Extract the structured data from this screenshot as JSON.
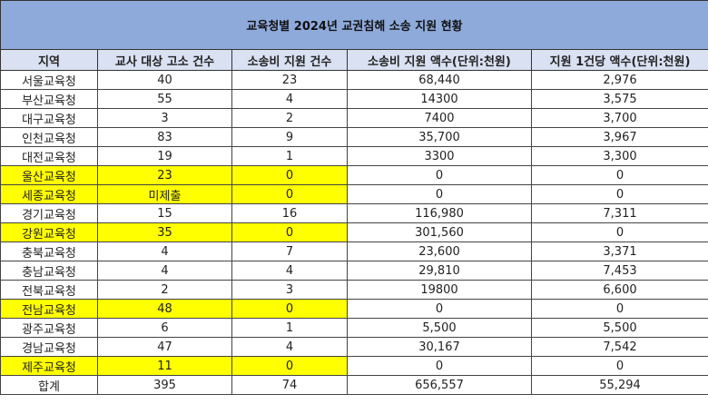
{
  "title": "교육청별 2024년 교권침해 소송 지원 현황",
  "headers": [
    "지역",
    "교사 대상 고소 건수",
    "소송비 지원 건수",
    "소송비 지원 액수(단위:천원)",
    "지원 1건당 액수(단위:천원)"
  ],
  "highlight_color": "#ffff00",
  "header_color": "#d9e1f2",
  "title_color": "#8eaadb",
  "rows": [
    {
      "region": "서울교육청",
      "complaints": "40",
      "support_count": "23",
      "support_amount": "68,440",
      "per_case": "2,976",
      "highlight": false
    },
    {
      "region": "부산교육청",
      "complaints": "55",
      "support_count": "4",
      "support_amount": "14300",
      "per_case": "3,575",
      "highlight": false
    },
    {
      "region": "대구교육청",
      "complaints": "3",
      "support_count": "2",
      "support_amount": "7400",
      "per_case": "3,700",
      "highlight": false
    },
    {
      "region": "인천교육청",
      "complaints": "83",
      "support_count": "9",
      "support_amount": "35,700",
      "per_case": "3,967",
      "highlight": false
    },
    {
      "region": "대전교육청",
      "complaints": "19",
      "support_count": "1",
      "support_amount": "3300",
      "per_case": "3,300",
      "highlight": false
    },
    {
      "region": "울산교육청",
      "complaints": "23",
      "support_count": "0",
      "support_amount": "0",
      "per_case": "0",
      "highlight": true
    },
    {
      "region": "세종교육청",
      "complaints": "미제출",
      "support_count": "0",
      "support_amount": "0",
      "per_case": "0",
      "highlight": true
    },
    {
      "region": "경기교육청",
      "complaints": "15",
      "support_count": "16",
      "support_amount": "116,980",
      "per_case": "7,311",
      "highlight": false
    },
    {
      "region": "강원교육청",
      "complaints": "35",
      "support_count": "0",
      "support_amount": "301,560",
      "per_case": "0",
      "highlight": true
    },
    {
      "region": "충북교육청",
      "complaints": "4",
      "support_count": "7",
      "support_amount": "23,600",
      "per_case": "3,371",
      "highlight": false
    },
    {
      "region": "충남교육청",
      "complaints": "4",
      "support_count": "4",
      "support_amount": "29,810",
      "per_case": "7,453",
      "highlight": false
    },
    {
      "region": "전북교육청",
      "complaints": "2",
      "support_count": "3",
      "support_amount": "19800",
      "per_case": "6,600",
      "highlight": false
    },
    {
      "region": "전남교육청",
      "complaints": "48",
      "support_count": "0",
      "support_amount": "0",
      "per_case": "0",
      "highlight": true
    },
    {
      "region": "광주교육청",
      "complaints": "6",
      "support_count": "1",
      "support_amount": "5,500",
      "per_case": "5,500",
      "highlight": false
    },
    {
      "region": "경남교육청",
      "complaints": "47",
      "support_count": "4",
      "support_amount": "30,167",
      "per_case": "7,542",
      "highlight": false
    },
    {
      "region": "제주교육청",
      "complaints": "11",
      "support_count": "0",
      "support_amount": "0",
      "per_case": "0",
      "highlight": true
    }
  ],
  "total": {
    "region": "합계",
    "complaints": "395",
    "support_count": "74",
    "support_amount": "656,557",
    "per_case": "55,294"
  }
}
